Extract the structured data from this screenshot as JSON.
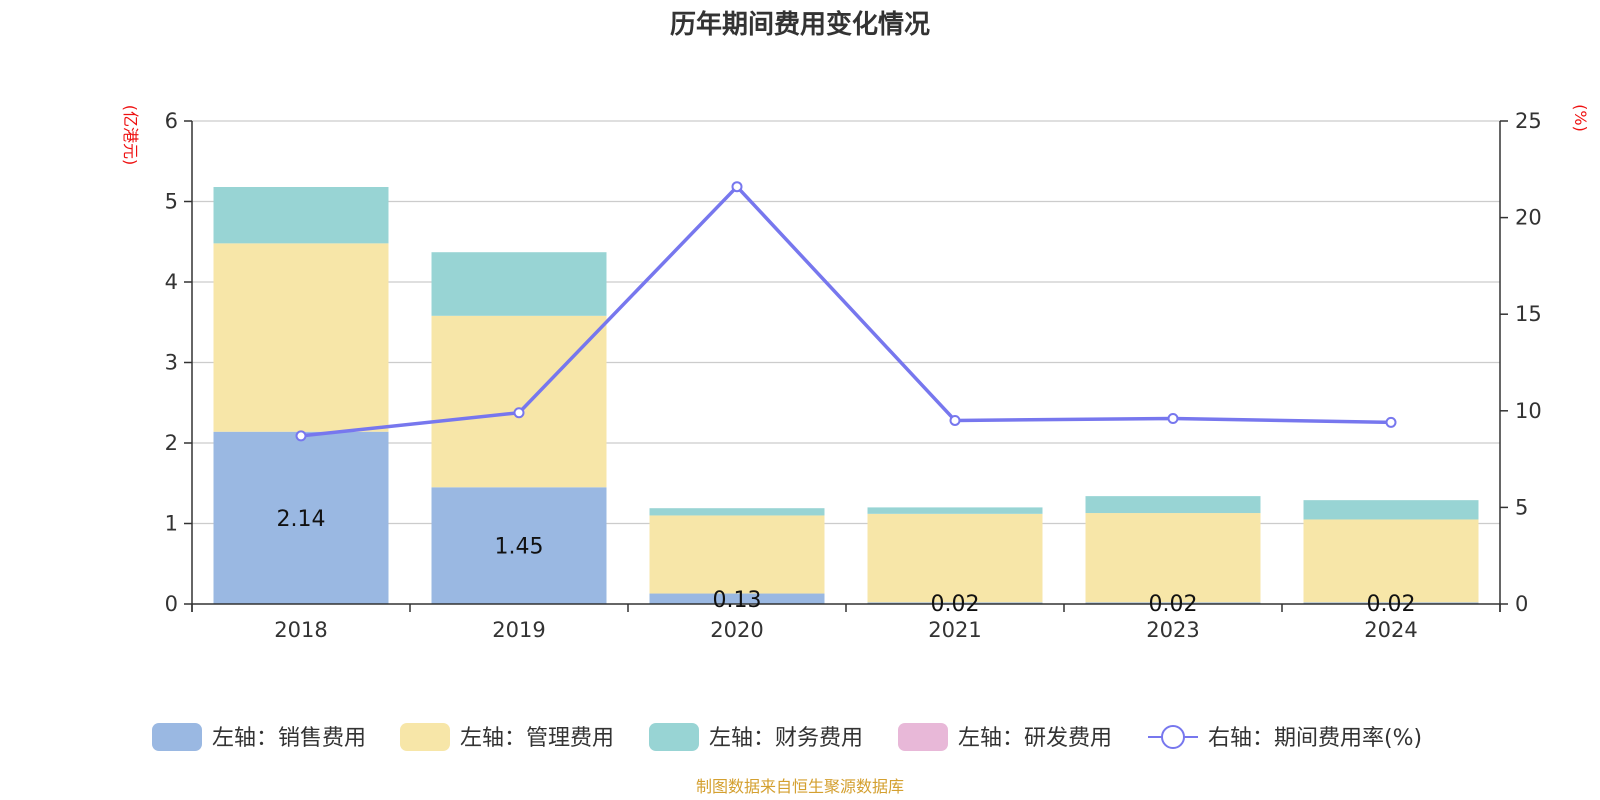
{
  "chart_data": {
    "type": "bar",
    "title": "历年期间费用变化情况",
    "left_unit": "(亿港元)",
    "right_unit": "(%)",
    "categories": [
      "2018",
      "2019",
      "2020",
      "2021",
      "2023",
      "2024"
    ],
    "left_ylim": [
      0,
      6
    ],
    "left_ticks": [
      "0",
      "1",
      "2",
      "3",
      "4",
      "5",
      "6"
    ],
    "right_ylim": [
      0,
      25
    ],
    "right_ticks": [
      "0",
      "5",
      "10",
      "15",
      "20",
      "25"
    ],
    "grid": true,
    "legend_position": "bottom",
    "series": [
      {
        "name": "左轴：销售费用",
        "type": "bar",
        "stack": true,
        "axis": "left",
        "color": "#9ab8e2",
        "values": [
          2.14,
          1.45,
          0.13,
          0.02,
          0.02,
          0.02
        ],
        "labels": [
          "2.14",
          "1.45",
          "0.13",
          "0.02",
          "0.02",
          "0.02"
        ]
      },
      {
        "name": "左轴：管理费用",
        "type": "bar",
        "stack": true,
        "axis": "left",
        "color": "#f7e6a8",
        "values": [
          2.34,
          2.13,
          0.97,
          1.1,
          1.11,
          1.03
        ]
      },
      {
        "name": "左轴：财务费用",
        "type": "bar",
        "stack": true,
        "axis": "left",
        "color": "#98d4d4",
        "values": [
          0.7,
          0.79,
          0.09,
          0.08,
          0.21,
          0.24
        ]
      },
      {
        "name": "左轴：研发费用",
        "type": "bar",
        "stack": true,
        "axis": "left",
        "color": "#e8b8d8",
        "values": [
          0,
          0,
          0,
          0,
          0,
          0
        ]
      },
      {
        "name": "右轴：期间费用率(%)",
        "type": "line",
        "axis": "right",
        "color": "#7777ee",
        "values": [
          8.7,
          9.9,
          21.6,
          9.5,
          9.6,
          9.4
        ]
      }
    ]
  },
  "source": "制图数据来自恒生聚源数据库",
  "colors": {
    "unit_label": "#ee1111",
    "source": "#d4a030",
    "grid": "#cccccc",
    "axis": "#333333"
  }
}
